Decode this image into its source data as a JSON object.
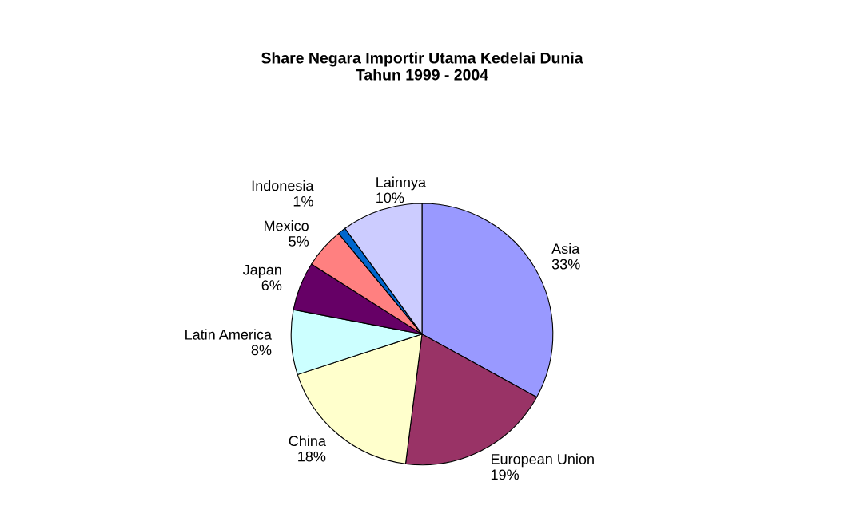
{
  "chart_data": {
    "type": "pie",
    "title": "Share Negara Importir Utama Kedelai Dunia\nTahun 1999 - 2004",
    "categories": [
      "Asia",
      "European Union",
      "China",
      "Latin America",
      "Japan",
      "Mexico",
      "Indonesia",
      "Lainnya"
    ],
    "values": [
      33,
      19,
      18,
      8,
      6,
      5,
      1,
      10
    ],
    "value_labels": [
      "33%",
      "19%",
      "18%",
      "8%",
      "6%",
      "5%",
      "1%",
      "10%"
    ],
    "colors": [
      "#9999ff",
      "#993366",
      "#ffffcc",
      "#ccffff",
      "#660066",
      "#ff8080",
      "#0066cc",
      "#ccccff"
    ]
  }
}
